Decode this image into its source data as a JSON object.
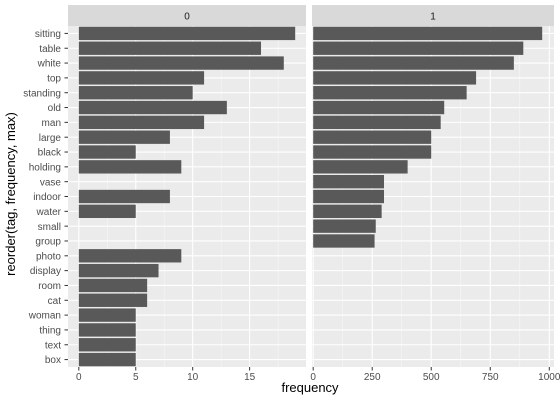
{
  "chart_data": {
    "type": "bar",
    "orientation": "horizontal",
    "facet": "faceted",
    "title": "",
    "xlabel": "frequency",
    "ylabel": "reorder(tag, frequency, max)",
    "categories": [
      "sitting",
      "table",
      "white",
      "top",
      "standing",
      "old",
      "man",
      "large",
      "black",
      "holding",
      "vase",
      "indoor",
      "water",
      "small",
      "group",
      "photo",
      "display",
      "room",
      "cat",
      "woman",
      "thing",
      "text",
      "box"
    ],
    "panels": [
      {
        "name": "0",
        "xlim": [
          -0.95,
          19.95
        ],
        "xticks": [
          0,
          5,
          10,
          15
        ],
        "xtick_labels": [
          "0",
          "5",
          "10",
          "15"
        ],
        "values": {
          "sitting": 19,
          "table": 16,
          "white": 18,
          "top": 11,
          "standing": 10,
          "old": 13,
          "man": 11,
          "large": 8,
          "black": 5,
          "holding": 9,
          "indoor": 8,
          "water": 5,
          "photo": 9,
          "display": 7,
          "room": 6,
          "cat": 6,
          "woman": 5,
          "thing": 5,
          "text": 5,
          "box": 5
        }
      },
      {
        "name": "1",
        "xlim": [
          -5,
          1020
        ],
        "xticks": [
          0,
          250,
          500,
          750,
          1000
        ],
        "xtick_labels": [
          "0",
          "250",
          "500",
          "750",
          "1000"
        ],
        "values": {
          "sitting": 970,
          "table": 890,
          "white": 850,
          "top": 690,
          "standing": 650,
          "old": 555,
          "man": 540,
          "large": 500,
          "black": 500,
          "holding": 400,
          "vase": 300,
          "indoor": 300,
          "water": 290,
          "small": 265,
          "group": 260
        }
      }
    ],
    "bar_color": "#595959",
    "panel_background": "#ebebeb",
    "strip_background": "#d9d9d9",
    "grid": true
  }
}
